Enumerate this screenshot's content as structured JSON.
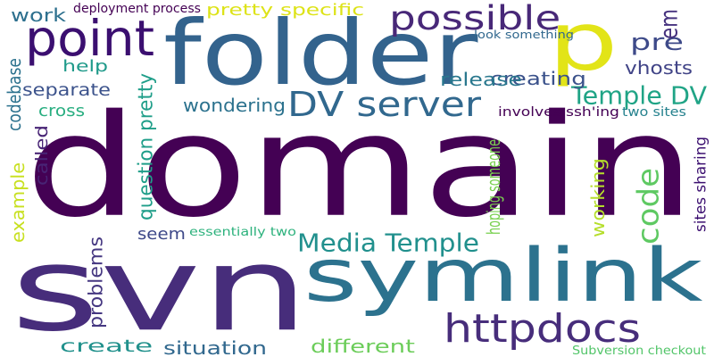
{
  "words": [
    {
      "text": "domain",
      "color": "#440154"
    },
    {
      "text": "svn",
      "color": "#472d7b"
    },
    {
      "text": "symlink",
      "color": "#2c728e"
    },
    {
      "text": "folder",
      "color": "#33638d"
    },
    {
      "text": "p",
      "color": "#e2e418"
    },
    {
      "text": "point",
      "color": "#3b0f70"
    },
    {
      "text": "possible",
      "color": "#482878"
    },
    {
      "text": "httpdocs",
      "color": "#472d7b"
    },
    {
      "text": "DV server",
      "color": "#31688e"
    },
    {
      "text": "Media Temple",
      "color": "#21908d"
    },
    {
      "text": "Temple DV",
      "color": "#20a486"
    },
    {
      "text": "code",
      "color": "#5ec962"
    },
    {
      "text": "pre",
      "color": "#3e4a89"
    },
    {
      "text": "em",
      "color": "#46327e"
    },
    {
      "text": "creating",
      "color": "#3b528b"
    },
    {
      "text": "vhosts",
      "color": "#414487"
    },
    {
      "text": "release",
      "color": "#2a788e"
    },
    {
      "text": "separate",
      "color": "#3b528b"
    },
    {
      "text": "wondering",
      "color": "#2c728e"
    },
    {
      "text": "codebase",
      "color": "#2c728e"
    },
    {
      "text": "cross",
      "color": "#28ae80"
    },
    {
      "text": "called",
      "color": "#482475"
    },
    {
      "text": "example",
      "color": "#c8e020"
    },
    {
      "text": "question pretty",
      "color": "#1f9e89"
    },
    {
      "text": "hoping someone",
      "color": "#7ad151"
    },
    {
      "text": "working",
      "color": "#b5de2b"
    },
    {
      "text": "problems",
      "color": "#453781"
    },
    {
      "text": "seem",
      "color": "#3e4989"
    },
    {
      "text": "essentially two",
      "color": "#2db27d"
    },
    {
      "text": "create",
      "color": "#21918c"
    },
    {
      "text": "situation",
      "color": "#31688e"
    },
    {
      "text": "different",
      "color": "#6ccd5a"
    },
    {
      "text": "Subversion checkout",
      "color": "#52c569"
    },
    {
      "text": "help",
      "color": "#1f9a8a"
    },
    {
      "text": "work",
      "color": "#2d708e"
    },
    {
      "text": "deployment process",
      "color": "#440154"
    },
    {
      "text": "pretty specific",
      "color": "#dde318"
    },
    {
      "text": "look something",
      "color": "#31688e"
    },
    {
      "text": "involves ssh'ing",
      "color": "#440154"
    },
    {
      "text": "two sites",
      "color": "#26828e"
    },
    {
      "text": "sites sharing",
      "color": "#3b0f70"
    }
  ]
}
